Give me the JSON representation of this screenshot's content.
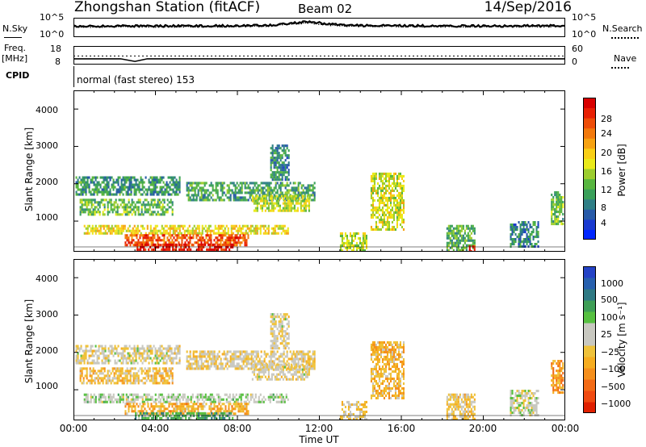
{
  "header": {
    "station_title": "Zhongshan Station (fitACF)",
    "beam": "Beam 02",
    "date": "14/Sep/2016"
  },
  "strips": {
    "nsky_label": "N.Sky",
    "nsky_ticks": [
      "10^5",
      "10^0"
    ],
    "nsearch_label": "N.Search",
    "nsearch_ticks": [
      "10^5",
      "10^0"
    ],
    "freq_label_line1": "Freq.",
    "freq_label_line2": "[MHz]",
    "freq_ticks": [
      "18",
      "8"
    ],
    "nave_label": "Nave",
    "nave_ticks": [
      "60",
      "0"
    ],
    "cpid_label": "CPID",
    "cpid_text": "normal (fast stereo) 153"
  },
  "time_axis": {
    "label": "Time UT",
    "ticks": [
      "00:00",
      "04:00",
      "08:00",
      "12:00",
      "16:00",
      "20:00",
      "00:00"
    ]
  },
  "panels": {
    "power": {
      "ylabel": "Slant Range [km]",
      "yticks": [
        "1000",
        "2000",
        "3000",
        "4000"
      ],
      "colorbar_label": "Power [dB]",
      "colorbar_ticks": [
        "4",
        "8",
        "12",
        "16",
        "20",
        "24",
        "28"
      ]
    },
    "velocity": {
      "ylabel": "Slant Range [km]",
      "yticks": [
        "1000",
        "2000",
        "3000",
        "4000"
      ],
      "colorbar_label": "Velocity [m s⁻¹]",
      "colorbar_ticks": [
        "1000",
        "500",
        "100",
        "25",
        "−25",
        "−100",
        "−500",
        "−1000"
      ]
    }
  },
  "chart_data": [
    {
      "type": "heatmap",
      "title": "Power [dB]",
      "xlabel": "Time UT",
      "ylabel": "Slant Range [km]",
      "x_range_hours": [
        0,
        24
      ],
      "ylim": [
        180,
        4500
      ],
      "color_scale": [
        0,
        30
      ],
      "colorbar_colors": [
        "#0026ff",
        "#1a3ad0",
        "#275aa8",
        "#2f7f86",
        "#3aa05a",
        "#58b640",
        "#9ccd2e",
        "#eaea1a",
        "#f8cf16",
        "#f6a212",
        "#f2790c",
        "#ee4d08",
        "#e82004",
        "#d80000"
      ],
      "regions": [
        {
          "t_start": 0.1,
          "t_end": 5.2,
          "r_min": 1700,
          "r_max": 2200,
          "power_db": 9
        },
        {
          "t_start": 0.3,
          "t_end": 4.8,
          "r_min": 1150,
          "r_max": 1600,
          "power_db": 12
        },
        {
          "t_start": 0.5,
          "t_end": 10.5,
          "r_min": 650,
          "r_max": 900,
          "power_db": 17
        },
        {
          "t_start": 2.5,
          "t_end": 8.5,
          "r_min": 350,
          "r_max": 650,
          "power_db": 24
        },
        {
          "t_start": 3.0,
          "t_end": 7.8,
          "r_min": 200,
          "r_max": 400,
          "power_db": 28
        },
        {
          "t_start": 5.5,
          "t_end": 11.8,
          "r_min": 1550,
          "r_max": 2050,
          "power_db": 10
        },
        {
          "t_start": 8.7,
          "t_end": 11.5,
          "r_min": 1250,
          "r_max": 1700,
          "power_db": 15
        },
        {
          "t_start": 9.6,
          "t_end": 10.5,
          "r_min": 2100,
          "r_max": 3050,
          "power_db": 8
        },
        {
          "t_start": 13.0,
          "t_end": 14.3,
          "r_min": 200,
          "r_max": 700,
          "power_db": 15
        },
        {
          "t_start": 14.5,
          "t_end": 16.1,
          "r_min": 800,
          "r_max": 2300,
          "power_db": 16
        },
        {
          "t_start": 18.2,
          "t_end": 19.6,
          "r_min": 200,
          "r_max": 900,
          "power_db": 11
        },
        {
          "t_start": 19.3,
          "t_end": 19.6,
          "r_min": 200,
          "r_max": 350,
          "power_db": 28
        },
        {
          "t_start": 21.3,
          "t_end": 22.7,
          "r_min": 350,
          "r_max": 1000,
          "power_db": 8
        },
        {
          "t_start": 23.3,
          "t_end": 23.9,
          "r_min": 900,
          "r_max": 1800,
          "power_db": 12
        }
      ]
    },
    {
      "type": "heatmap",
      "title": "Velocity [m s⁻¹]",
      "xlabel": "Time UT",
      "ylabel": "Slant Range [km]",
      "x_range_hours": [
        0,
        24
      ],
      "ylim": [
        180,
        4500
      ],
      "color_scale": [
        -1000,
        1000
      ],
      "colorbar_colors": [
        "#e02000",
        "#f04a10",
        "#f36b16",
        "#f58f1c",
        "#f6ad20",
        "#efc23a",
        "#c8c8c0",
        "#c8c8c0",
        "#56c040",
        "#3e9e56",
        "#2f7a84",
        "#2760ae",
        "#2443c6"
      ],
      "regions": [
        {
          "t_start": 0.1,
          "t_end": 5.2,
          "r_min": 1700,
          "r_max": 2200,
          "velocity": 0
        },
        {
          "t_start": 0.3,
          "t_end": 4.8,
          "r_min": 1150,
          "r_max": 1600,
          "velocity": -200
        },
        {
          "t_start": 0.5,
          "t_end": 10.5,
          "r_min": 650,
          "r_max": 900,
          "velocity": 150
        },
        {
          "t_start": 2.5,
          "t_end": 8.5,
          "r_min": 350,
          "r_max": 650,
          "velocity": -300
        },
        {
          "t_start": 3.0,
          "t_end": 7.8,
          "r_min": 200,
          "r_max": 400,
          "velocity": 400
        },
        {
          "t_start": 5.5,
          "t_end": 11.8,
          "r_min": 1550,
          "r_max": 2050,
          "velocity": -80
        },
        {
          "t_start": 8.7,
          "t_end": 11.5,
          "r_min": 1250,
          "r_max": 1700,
          "velocity": 0
        },
        {
          "t_start": 9.6,
          "t_end": 10.5,
          "r_min": 2100,
          "r_max": 3050,
          "velocity": 0
        },
        {
          "t_start": 13.0,
          "t_end": 14.3,
          "r_min": 200,
          "r_max": 700,
          "velocity": -120
        },
        {
          "t_start": 14.5,
          "t_end": 16.1,
          "r_min": 800,
          "r_max": 2300,
          "velocity": -250
        },
        {
          "t_start": 18.2,
          "t_end": 19.6,
          "r_min": 200,
          "r_max": 900,
          "velocity": -150
        },
        {
          "t_start": 21.3,
          "t_end": 22.7,
          "r_min": 350,
          "r_max": 1000,
          "velocity": 80
        },
        {
          "t_start": 23.3,
          "t_end": 23.9,
          "r_min": 900,
          "r_max": 1800,
          "velocity": -400
        }
      ]
    },
    {
      "type": "line",
      "title": "N.Sky / N.Search",
      "x_range_hours": [
        0,
        24
      ],
      "y_scale": "log",
      "ylim": [
        1,
        100000
      ],
      "series": [
        {
          "name": "N.Sky",
          "x": [
            0,
            2,
            4,
            6,
            8,
            9.5,
            10.5,
            11.5,
            12.5,
            13.5,
            15,
            17,
            19,
            21,
            23,
            24
          ],
          "y": [
            700,
            900,
            800,
            900,
            1000,
            1500,
            5000,
            20000,
            3000,
            1200,
            1300,
            1000,
            900,
            900,
            1000,
            1000
          ]
        },
        {
          "name": "N.Search",
          "x": [
            0,
            2,
            4,
            6,
            8,
            9.5,
            10.5,
            11.5,
            12.5,
            13.5,
            15,
            17,
            19,
            21,
            23,
            24
          ],
          "y": [
            400,
            500,
            450,
            500,
            600,
            800,
            2500,
            9000,
            1500,
            700,
            700,
            600,
            500,
            500,
            600,
            600
          ]
        }
      ]
    },
    {
      "type": "line",
      "title": "Freq. [MHz] / Nave",
      "x_range_hours": [
        0,
        24
      ],
      "series": [
        {
          "name": "Freq.",
          "x": [
            0,
            24
          ],
          "y": [
            12.5,
            12.5
          ]
        },
        {
          "name": "Nave",
          "x": [
            0,
            2.3,
            3.0,
            3.6,
            24
          ],
          "y": [
            16,
            16,
            6,
            16,
            16
          ]
        }
      ]
    }
  ]
}
